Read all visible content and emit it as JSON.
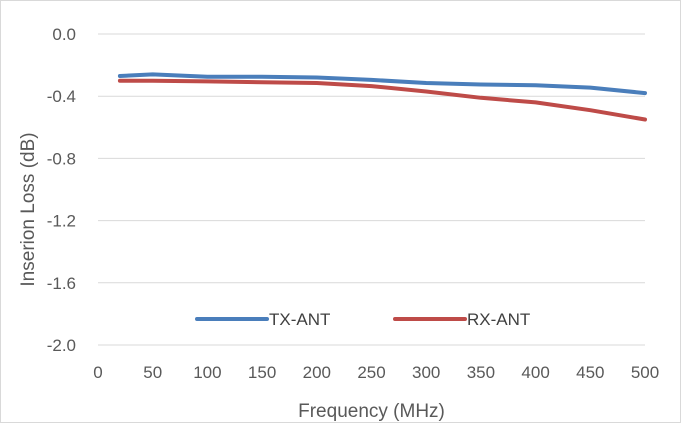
{
  "chart_data": {
    "type": "line",
    "title": "",
    "xlabel": "Frequency (MHz)",
    "ylabel": "Inserion Loss (dB)",
    "xlim": [
      0,
      500
    ],
    "ylim": [
      -2.0,
      0.0
    ],
    "x_ticks": [
      0,
      50,
      100,
      150,
      200,
      250,
      300,
      350,
      400,
      450,
      500
    ],
    "x_tick_labels": [
      "0",
      "50",
      "100",
      "150",
      "200",
      "250",
      "300",
      "350",
      "400",
      "450",
      "500"
    ],
    "y_ticks": [
      0.0,
      -0.4,
      -0.8,
      -1.2,
      -1.6,
      -2.0
    ],
    "y_tick_labels": [
      "0.0",
      "-0.4",
      "-0.8",
      "-1.2",
      "-1.6",
      "-2.0"
    ],
    "grid": "horizontal",
    "legend_position": "bottom-inside",
    "x": [
      20,
      50,
      100,
      150,
      200,
      250,
      300,
      350,
      400,
      450,
      500
    ],
    "series": [
      {
        "name": "TX-ANT",
        "color": "#4a7ebb",
        "values": [
          -0.27,
          -0.26,
          -0.275,
          -0.275,
          -0.28,
          -0.295,
          -0.315,
          -0.325,
          -0.33,
          -0.345,
          -0.38
        ]
      },
      {
        "name": "RX-ANT",
        "color": "#be4b48",
        "values": [
          -0.3,
          -0.3,
          -0.305,
          -0.31,
          -0.315,
          -0.335,
          -0.37,
          -0.41,
          -0.44,
          -0.49,
          -0.55
        ]
      }
    ]
  }
}
